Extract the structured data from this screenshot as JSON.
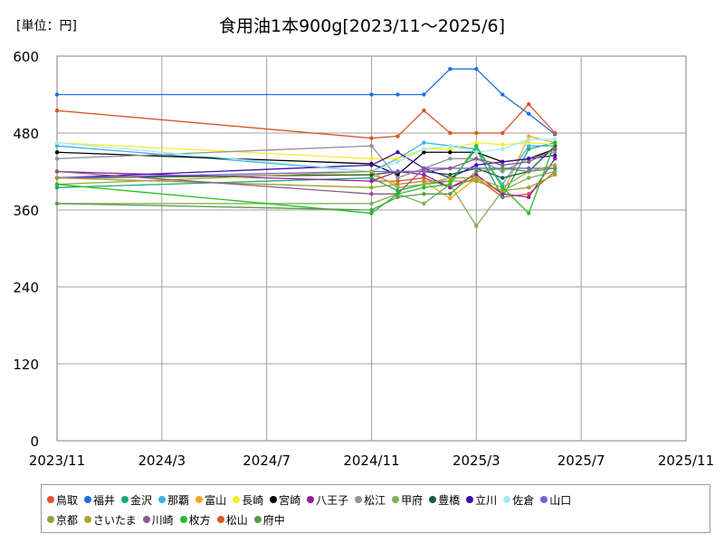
{
  "chart_data": {
    "type": "line",
    "title": "食用油1本900g[2023/11～2025/6]",
    "unit_label": "[単位：円]",
    "ylim": [
      0,
      600
    ],
    "yticks": [
      0,
      120,
      240,
      360,
      480,
      600
    ],
    "xlim": [
      "2023-11",
      "2025-11"
    ],
    "xticks": [
      {
        "date": "2023-11",
        "label": "2023/11"
      },
      {
        "date": "2024-03",
        "label": "2024/3"
      },
      {
        "date": "2024-07",
        "label": "2024/7"
      },
      {
        "date": "2024-11",
        "label": "2024/11"
      },
      {
        "date": "2025-03",
        "label": "2025/3"
      },
      {
        "date": "2025-07",
        "label": "2025/7"
      },
      {
        "date": "2025-11",
        "label": "2025/11"
      }
    ],
    "x": [
      "2023-11",
      "2024-11",
      "2024-12",
      "2025-01",
      "2025-02",
      "2025-03",
      "2025-04",
      "2025-05",
      "2025-06"
    ],
    "grid": true,
    "legend_position": "bottom",
    "series": [
      {
        "name": "鳥取",
        "color": "#e8502c",
        "values": [
          null,
          405,
          405,
          410,
          395,
          410,
          380,
          385,
          420
        ]
      },
      {
        "name": "福井",
        "color": "#1e6fe0",
        "values": [
          540,
          540,
          540,
          540,
          580,
          580,
          540,
          510,
          478
        ]
      },
      {
        "name": "金沢",
        "color": "#1aa67a",
        "values": [
          395,
          410,
          390,
          400,
          405,
          455,
          380,
          455,
          465
        ]
      },
      {
        "name": "那覇",
        "color": "#3eaeea",
        "values": [
          460,
          420,
          440,
          465,
          460,
          455,
          400,
          460,
          460
        ]
      },
      {
        "name": "富山",
        "color": "#f4a71e",
        "values": [
          410,
          415,
          400,
          405,
          378,
          410,
          385,
          475,
          465
        ]
      },
      {
        "name": "長崎",
        "color": "#f5ec2c",
        "values": [
          465,
          440,
          440,
          455,
          455,
          465,
          462,
          465,
          462
        ]
      },
      {
        "name": "宮崎",
        "color": "#000000",
        "values": [
          450,
          432,
          415,
          450,
          450,
          450,
          435,
          440,
          455
        ]
      },
      {
        "name": "八王子",
        "color": "#9a1a9a",
        "values": [
          420,
          405,
          420,
          415,
          395,
          415,
          385,
          380,
          440
        ]
      },
      {
        "name": "松江",
        "color": "#8e959e",
        "values": [
          440,
          460,
          410,
          425,
          440,
          440,
          420,
          440,
          450
        ]
      },
      {
        "name": "甲府",
        "color": "#7fb05a",
        "values": [
          370,
          370,
          385,
          370,
          400,
          335,
          390,
          410,
          420
        ]
      },
      {
        "name": "豊橋",
        "color": "#1f5a32",
        "values": [
          410,
          415,
          420,
          420,
          415,
          425,
          410,
          420,
          460
        ]
      },
      {
        "name": "立川",
        "color": "#3a10a8",
        "values": [
          410,
          430,
          450,
          425,
          410,
          430,
          435,
          440,
          445
        ]
      },
      {
        "name": "佐倉",
        "color": "#a0ecf5",
        "values": [
          465,
          420,
          435,
          455,
          460,
          450,
          455,
          470,
          470
        ]
      },
      {
        "name": "山口",
        "color": "#7a60d8",
        "values": [
          410,
          420,
          420,
          420,
          425,
          425,
          425,
          425,
          425
        ]
      },
      {
        "name": "京都",
        "color": "#9aa030",
        "values": [
          410,
          395,
          400,
          405,
          405,
          405,
          390,
          395,
          415
        ]
      },
      {
        "name": "さいたま",
        "color": "#a8a832",
        "values": [
          400,
          420,
          395,
          400,
          410,
          410,
          395,
          420,
          430
        ]
      },
      {
        "name": "川崎",
        "color": "#8e5a8a",
        "values": [
          420,
          385,
          385,
          425,
          425,
          440,
          430,
          435,
          455
        ]
      },
      {
        "name": "枚方",
        "color": "#22c022",
        "values": [
          400,
          355,
          385,
          395,
          400,
          460,
          395,
          355,
          465
        ]
      },
      {
        "name": "松山",
        "color": "#d8542a",
        "values": [
          515,
          472,
          475,
          515,
          480,
          480,
          480,
          525,
          480
        ]
      },
      {
        "name": "府中",
        "color": "#5a9a4a",
        "values": [
          370,
          360,
          380,
          385,
          385,
          420,
          425,
          420,
          425
        ]
      }
    ]
  }
}
